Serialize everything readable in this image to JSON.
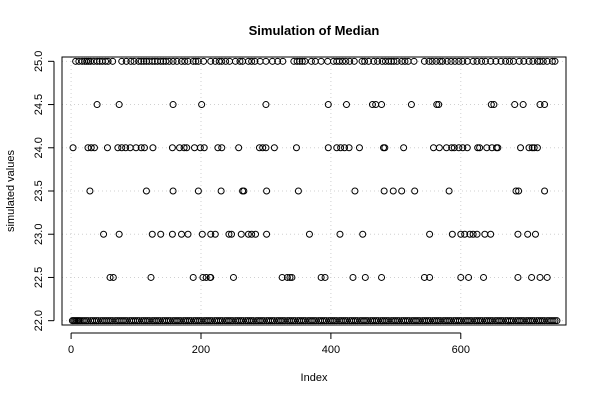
{
  "chart_data": {
    "type": "scatter",
    "title": "Simulation of Median",
    "xlabel": "Index",
    "ylabel": "simulated values",
    "xlim": [
      -14,
      762
    ],
    "ylim": [
      21.95,
      25.05
    ],
    "xticks": [
      0,
      200,
      400,
      600
    ],
    "yticks": [
      22.0,
      22.5,
      23.0,
      23.5,
      24.0,
      24.5,
      25.0
    ],
    "ytick_labels": [
      "22.0",
      "22.5",
      "23.0",
      "23.5",
      "24.0",
      "24.5",
      "25.0"
    ],
    "grid": true,
    "n": 750,
    "value_levels": [
      22.0,
      22.5,
      23.0,
      23.5,
      24.0,
      24.5,
      25.0
    ],
    "series": [
      {
        "index_by_level": {
          "25.0": [
            7,
            12,
            17,
            21,
            24,
            27,
            30,
            35,
            40,
            44,
            48,
            53,
            57,
            64,
            78,
            85,
            92,
            97,
            104,
            108,
            112,
            116,
            120,
            125,
            129,
            133,
            138,
            142,
            146,
            151,
            157,
            163,
            170,
            175,
            180,
            188,
            192,
            196,
            204,
            215,
            222,
            228,
            232,
            238,
            244,
            253,
            260,
            264,
            273,
            278,
            283,
            291,
            300,
            310,
            318,
            326,
            343,
            348,
            352,
            356,
            360,
            370,
            376,
            385,
            395,
            404,
            409,
            413,
            418,
            423,
            429,
            436,
            448,
            452,
            458,
            466,
            472,
            479,
            484,
            489,
            493,
            497,
            502,
            509,
            514,
            519,
            528,
            544,
            551,
            556,
            562,
            568,
            572,
            579,
            585,
            591,
            597,
            603,
            610,
            619,
            625,
            632,
            638,
            646,
            654,
            662,
            669,
            675,
            681,
            690,
            697,
            705,
            711,
            718,
            722,
            727,
            733,
            741,
            745
          ],
          "24.5": [
            40,
            74,
            157,
            201,
            300,
            396,
            424,
            464,
            469,
            478,
            524,
            563,
            566,
            647,
            651,
            683,
            696,
            722,
            729
          ],
          "24.0": [
            3,
            26,
            31,
            36,
            56,
            72,
            78,
            84,
            91,
            100,
            108,
            113,
            126,
            156,
            167,
            174,
            178,
            190,
            199,
            205,
            226,
            232,
            258,
            290,
            295,
            300,
            313,
            347,
            396,
            409,
            415,
            421,
            428,
            444,
            481,
            483,
            512,
            558,
            567,
            578,
            586,
            590,
            597,
            603,
            610,
            626,
            629,
            640,
            648,
            655,
            657,
            692,
            705,
            710,
            713,
            718
          ],
          "23.5": [
            29,
            116,
            157,
            196,
            231,
            264,
            266,
            301,
            350,
            437,
            482,
            496,
            509,
            529,
            582,
            685,
            689,
            729
          ],
          "23.0": [
            50,
            74,
            125,
            138,
            156,
            170,
            180,
            202,
            215,
            222,
            243,
            247,
            262,
            273,
            278,
            284,
            301,
            367,
            414,
            449,
            552,
            587,
            600,
            606,
            614,
            619,
            625,
            637,
            646,
            688,
            703,
            715
          ],
          "22.5": [
            60,
            65,
            123,
            188,
            203,
            208,
            214,
            215,
            250,
            325,
            333,
            337,
            340,
            385,
            391,
            434,
            453,
            478,
            544,
            552,
            600,
            612,
            635,
            688,
            709,
            722,
            733
          ],
          "22.0": [
            2,
            4,
            6,
            8,
            10,
            12,
            14,
            17,
            20,
            23,
            26,
            30,
            33,
            36,
            39,
            42,
            46,
            49,
            52,
            55,
            58,
            61,
            64,
            68,
            71,
            74,
            77,
            80,
            83,
            86,
            90,
            93,
            96,
            99,
            102,
            105,
            109,
            112,
            115,
            118,
            121,
            125,
            128,
            131,
            134,
            137,
            141,
            144,
            147,
            150,
            153,
            157,
            160,
            163,
            166,
            169,
            173,
            176,
            179,
            182,
            185,
            189,
            192,
            195,
            198,
            201,
            205,
            208,
            211,
            214,
            217,
            221,
            224,
            227,
            230,
            233,
            237,
            240,
            243,
            246,
            249,
            253,
            256,
            259,
            262,
            265,
            269,
            272,
            275,
            278,
            281,
            285,
            288,
            291,
            294,
            297,
            301,
            304,
            307,
            310,
            313,
            317,
            320,
            323,
            326,
            329,
            333,
            336,
            339,
            342,
            345,
            349,
            352,
            355,
            358,
            361,
            365,
            368,
            371,
            374,
            377,
            381,
            384,
            387,
            390,
            393,
            397,
            400,
            403,
            406,
            409,
            413,
            416,
            419,
            422,
            425,
            429,
            432,
            435,
            438,
            441,
            445,
            448,
            451,
            454,
            457,
            461,
            464,
            467,
            470,
            473,
            477,
            480,
            483,
            486,
            489,
            493,
            496,
            499,
            502,
            505,
            509,
            512,
            515,
            518,
            521,
            525,
            528,
            531,
            534,
            537,
            541,
            544,
            547,
            550,
            553,
            557,
            560,
            563,
            566,
            569,
            573,
            576,
            579,
            582,
            585,
            589,
            592,
            595,
            598,
            601,
            605,
            608,
            611,
            614,
            617,
            621,
            624,
            627,
            630,
            633,
            637,
            640,
            643,
            646,
            649,
            653,
            656,
            659,
            662,
            665,
            669,
            672,
            675,
            678,
            681,
            685,
            688,
            691,
            694,
            697,
            701,
            704,
            707,
            710,
            713,
            717,
            720,
            723,
            726,
            729,
            733,
            736,
            739,
            742,
            745,
            748
          ]
        }
      }
    ]
  }
}
